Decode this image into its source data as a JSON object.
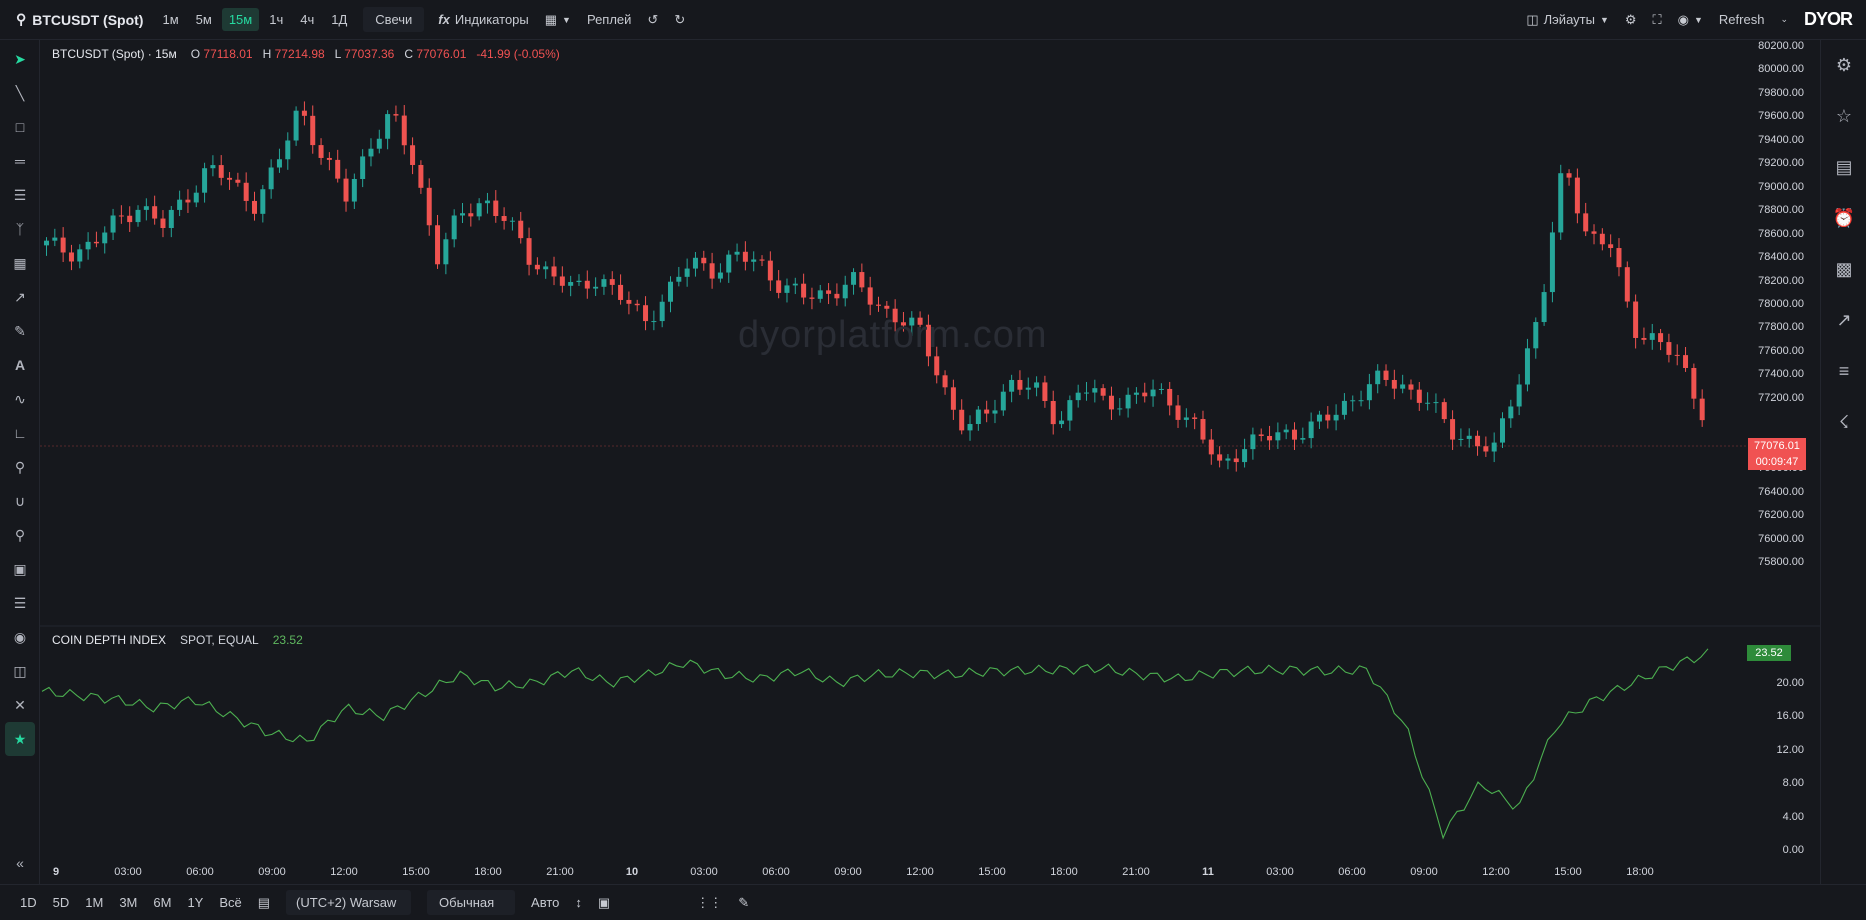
{
  "header": {
    "symbol": "BTCUSDT (Spot)",
    "timeframes": [
      "1м",
      "5м",
      "15м",
      "1ч",
      "4ч",
      "1Д"
    ],
    "active_timeframe": "15м",
    "chart_type": "Свечи",
    "indicators_label": "Индикаторы",
    "replay_label": "Реплей",
    "layouts_label": "Лэйауты",
    "refresh_label": "Refresh",
    "logo_text": "DYOR"
  },
  "legend": {
    "title": "BTCUSDT (Spot) · 15м",
    "o_label": "O",
    "o_value": "77118.01",
    "h_label": "H",
    "h_value": "77214.98",
    "l_label": "L",
    "l_value": "77037.36",
    "c_label": "C",
    "c_value": "77076.01",
    "change": "-41.99 (-0.05%)"
  },
  "watermark": "dyorplatform.com",
  "indicator": {
    "name": "COIN DEPTH INDEX",
    "params": "SPOT, EQUAL",
    "value": "23.52"
  },
  "price_axis": [
    "80200.00",
    "80000.00",
    "79800.00",
    "79600.00",
    "79400.00",
    "79200.00",
    "79000.00",
    "78800.00",
    "78600.00",
    "78400.00",
    "78200.00",
    "78000.00",
    "77800.00",
    "77600.00",
    "77400.00",
    "77200.00",
    "76800.00",
    "76600.00",
    "76400.00",
    "76200.00",
    "76000.00",
    "75800.00"
  ],
  "current_price": "77076.01",
  "countdown": "00:09:47",
  "indicator_axis": [
    "20.00",
    "16.00",
    "12.00",
    "8.00",
    "4.00",
    "0.00"
  ],
  "time_axis": [
    "9",
    "03:00",
    "06:00",
    "09:00",
    "12:00",
    "15:00",
    "18:00",
    "21:00",
    "10",
    "03:00",
    "06:00",
    "09:00",
    "12:00",
    "15:00",
    "18:00",
    "21:00",
    "11",
    "03:00",
    "06:00",
    "09:00",
    "12:00",
    "15:00",
    "18:00"
  ],
  "bottom": {
    "ranges": [
      "1D",
      "5D",
      "1M",
      "3M",
      "6M",
      "1Y",
      "Всё"
    ],
    "timezone": "(UTC+2) Warsaw",
    "scale_mode": "Обычная",
    "auto_label": "Авто"
  },
  "colors": {
    "up": "#26a69a",
    "down": "#ef5350",
    "indicator": "#4caf50",
    "accent": "#26d9a0"
  }
}
